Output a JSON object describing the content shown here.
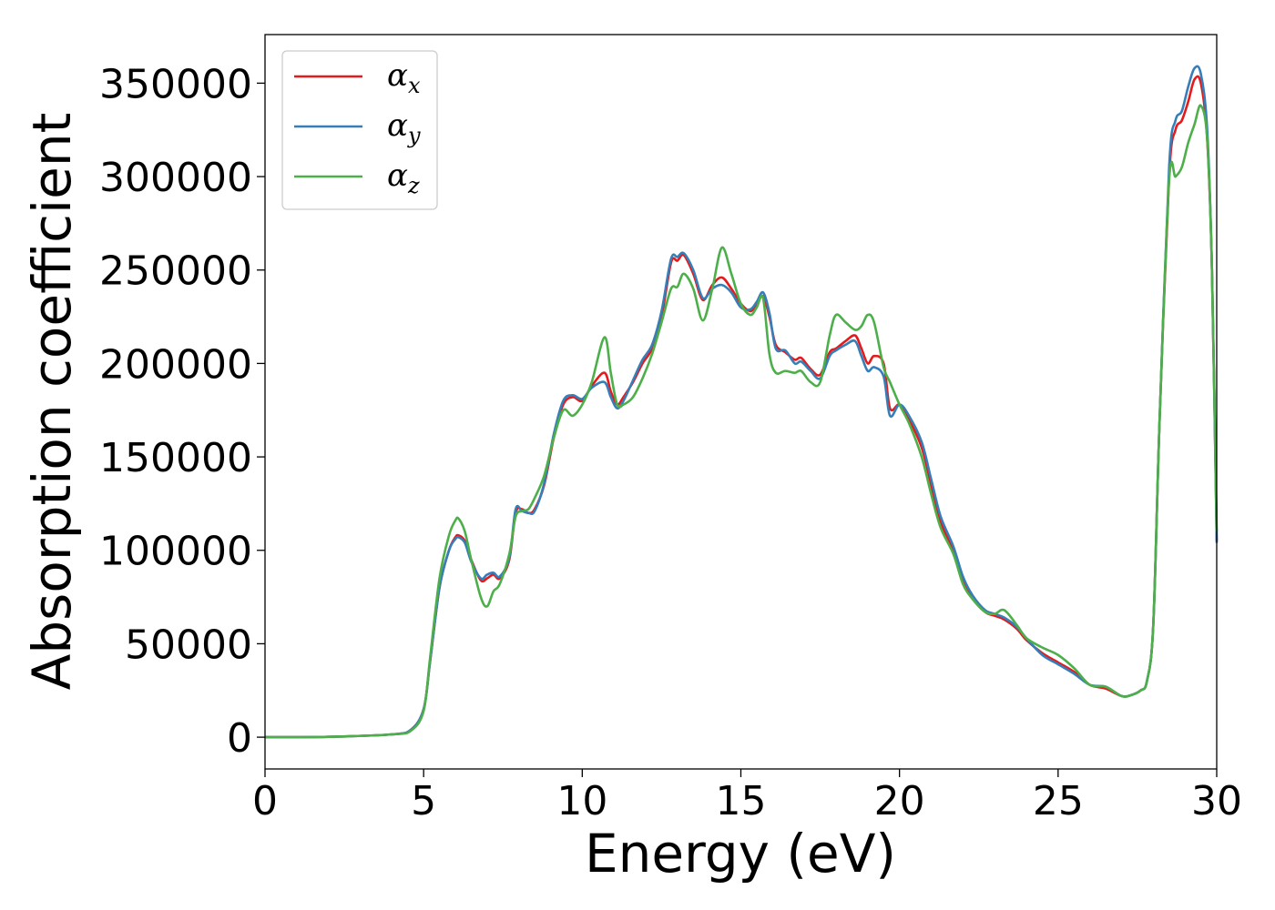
{
  "chart_data": {
    "type": "line",
    "xlabel": "Energy (eV)",
    "ylabel": "Absorption coefficient",
    "xlim": [
      0,
      30
    ],
    "ylim": [
      -17000,
      376000
    ],
    "xticks": [
      0,
      5,
      10,
      15,
      20,
      25,
      30
    ],
    "xtick_labels": [
      "0",
      "5",
      "10",
      "15",
      "20",
      "25",
      "30"
    ],
    "yticks": [
      0,
      50000,
      100000,
      150000,
      200000,
      250000,
      300000,
      350000
    ],
    "ytick_labels": [
      "0",
      "50000",
      "100000",
      "150000",
      "200000",
      "250000",
      "300000",
      "350000"
    ],
    "grid": false,
    "legend_position": "top-left",
    "series": [
      {
        "name": "α",
        "subscript": "x",
        "color": "#e41a1c",
        "x": [
          0,
          2,
          4,
          4.6,
          5,
          5.2,
          5.5,
          5.8,
          6.0,
          6.1,
          6.3,
          6.5,
          6.8,
          7.0,
          7.2,
          7.4,
          7.7,
          7.9,
          8.1,
          8.3,
          8.5,
          8.8,
          9.1,
          9.4,
          9.7,
          10.0,
          10.3,
          10.7,
          10.9,
          11.1,
          11.3,
          11.6,
          11.9,
          12.2,
          12.5,
          12.8,
          13.0,
          13.2,
          13.5,
          13.8,
          14.1,
          14.4,
          14.7,
          15.0,
          15.3,
          15.5,
          15.7,
          15.9,
          16.1,
          16.4,
          16.7,
          16.9,
          17.2,
          17.5,
          17.8,
          18.0,
          18.3,
          18.6,
          18.8,
          19.0,
          19.2,
          19.5,
          19.7,
          20.0,
          20.3,
          20.7,
          21.0,
          21.3,
          21.7,
          22.0,
          22.3,
          22.7,
          23.0,
          23.3,
          23.7,
          24.0,
          24.5,
          25.0,
          25.5,
          26.0,
          26.5,
          27.0,
          27.3,
          27.6,
          27.8,
          28.0,
          28.2,
          28.5,
          28.7,
          28.9,
          29.1,
          29.3,
          29.5,
          29.7,
          29.85,
          30.0
        ],
        "y": [
          0,
          200,
          1500,
          4000,
          15000,
          40000,
          80000,
          100000,
          107000,
          108000,
          105000,
          95000,
          84000,
          85000,
          87000,
          85000,
          95000,
          120000,
          122000,
          120000,
          122000,
          135000,
          160000,
          178000,
          182000,
          180000,
          188000,
          195000,
          185000,
          178000,
          182000,
          190000,
          200000,
          208000,
          225000,
          254000,
          255000,
          258000,
          248000,
          234000,
          242000,
          246000,
          240000,
          232000,
          228000,
          232000,
          236000,
          225000,
          210000,
          206000,
          202000,
          203000,
          197000,
          194000,
          206000,
          208000,
          212000,
          215000,
          208000,
          200000,
          204000,
          200000,
          176000,
          178000,
          170000,
          155000,
          135000,
          115000,
          100000,
          85000,
          75000,
          67000,
          65000,
          63000,
          58000,
          52000,
          45000,
          40000,
          35000,
          28000,
          26000,
          22000,
          22500,
          25000,
          30000,
          60000,
          170000,
          300000,
          325000,
          330000,
          340000,
          352000,
          350000,
          320000,
          250000,
          105000
        ]
      },
      {
        "name": "α",
        "subscript": "y",
        "color": "#377eb8",
        "x": [
          0,
          2,
          4,
          4.6,
          5,
          5.2,
          5.5,
          5.8,
          6.0,
          6.1,
          6.3,
          6.5,
          6.8,
          7.0,
          7.2,
          7.4,
          7.7,
          7.9,
          8.1,
          8.3,
          8.5,
          8.8,
          9.1,
          9.4,
          9.7,
          10.0,
          10.3,
          10.7,
          10.9,
          11.1,
          11.3,
          11.6,
          11.9,
          12.2,
          12.5,
          12.8,
          13.0,
          13.2,
          13.5,
          13.8,
          14.1,
          14.4,
          14.7,
          15.0,
          15.3,
          15.5,
          15.7,
          15.9,
          16.1,
          16.4,
          16.7,
          16.9,
          17.2,
          17.5,
          17.8,
          18.0,
          18.3,
          18.6,
          18.8,
          19.0,
          19.2,
          19.5,
          19.7,
          20.0,
          20.3,
          20.7,
          21.0,
          21.3,
          21.7,
          22.0,
          22.3,
          22.7,
          23.0,
          23.3,
          23.7,
          24.0,
          24.5,
          25.0,
          25.5,
          26.0,
          26.5,
          27.0,
          27.3,
          27.6,
          27.8,
          28.0,
          28.2,
          28.5,
          28.7,
          28.9,
          29.1,
          29.3,
          29.5,
          29.7,
          29.85,
          30.0
        ],
        "y": [
          0,
          200,
          1500,
          4000,
          15000,
          40000,
          80000,
          100000,
          106000,
          107000,
          104000,
          94000,
          85000,
          87000,
          88000,
          86000,
          96000,
          122000,
          121000,
          120000,
          121000,
          136000,
          162000,
          180000,
          183000,
          181000,
          187000,
          190000,
          182000,
          176000,
          180000,
          191000,
          202000,
          210000,
          228000,
          256000,
          257000,
          259000,
          250000,
          235000,
          240000,
          242000,
          238000,
          230000,
          229000,
          233000,
          238000,
          227000,
          208000,
          207000,
          200000,
          201000,
          196000,
          192000,
          204000,
          207000,
          210000,
          212000,
          204000,
          196000,
          198000,
          193000,
          172000,
          178000,
          172000,
          158000,
          138000,
          118000,
          102000,
          86000,
          76000,
          68000,
          66000,
          64000,
          59000,
          53000,
          44000,
          39000,
          34000,
          28000,
          27000,
          22000,
          22500,
          25000,
          30000,
          60000,
          170000,
          305000,
          330000,
          335000,
          348000,
          358000,
          355000,
          325000,
          250000,
          104000
        ]
      },
      {
        "name": "α",
        "subscript": "z",
        "color": "#4daf4a",
        "x": [
          0,
          2,
          4,
          4.6,
          5,
          5.2,
          5.5,
          5.8,
          6.0,
          6.1,
          6.3,
          6.5,
          6.8,
          7.0,
          7.2,
          7.4,
          7.7,
          7.9,
          8.1,
          8.3,
          8.5,
          8.8,
          9.1,
          9.4,
          9.7,
          10.0,
          10.3,
          10.7,
          10.9,
          11.1,
          11.3,
          11.6,
          11.9,
          12.2,
          12.5,
          12.8,
          13.0,
          13.2,
          13.5,
          13.8,
          14.1,
          14.4,
          14.7,
          15.0,
          15.3,
          15.5,
          15.7,
          15.9,
          16.1,
          16.4,
          16.7,
          16.9,
          17.2,
          17.5,
          17.8,
          18.0,
          18.3,
          18.6,
          18.8,
          19.0,
          19.2,
          19.5,
          19.7,
          20.0,
          20.3,
          20.7,
          21.0,
          21.3,
          21.7,
          22.0,
          22.3,
          22.7,
          23.0,
          23.3,
          23.7,
          24.0,
          24.5,
          25.0,
          25.5,
          26.0,
          26.5,
          27.0,
          27.3,
          27.6,
          27.8,
          28.0,
          28.2,
          28.5,
          28.7,
          28.9,
          29.1,
          29.3,
          29.5,
          29.7,
          29.85,
          30.0
        ],
        "y": [
          0,
          200,
          1500,
          3500,
          14000,
          42000,
          85000,
          108000,
          116000,
          117000,
          110000,
          95000,
          75000,
          70000,
          78000,
          82000,
          98000,
          118000,
          121000,
          122000,
          128000,
          140000,
          160000,
          175000,
          172000,
          178000,
          190000,
          214000,
          195000,
          178000,
          178000,
          182000,
          192000,
          205000,
          222000,
          240000,
          241000,
          248000,
          240000,
          223000,
          240000,
          262000,
          248000,
          232000,
          226000,
          230000,
          235000,
          205000,
          195000,
          196000,
          195000,
          196000,
          190000,
          190000,
          215000,
          226000,
          222000,
          218000,
          220000,
          226000,
          222000,
          198000,
          190000,
          178000,
          168000,
          150000,
          130000,
          112000,
          98000,
          82000,
          74000,
          67000,
          66000,
          68000,
          60000,
          53000,
          48000,
          44000,
          37000,
          28000,
          27000,
          22000,
          22500,
          25000,
          30000,
          60000,
          170000,
          298000,
          300000,
          305000,
          318000,
          328000,
          338000,
          320000,
          250000,
          110000
        ]
      }
    ]
  }
}
